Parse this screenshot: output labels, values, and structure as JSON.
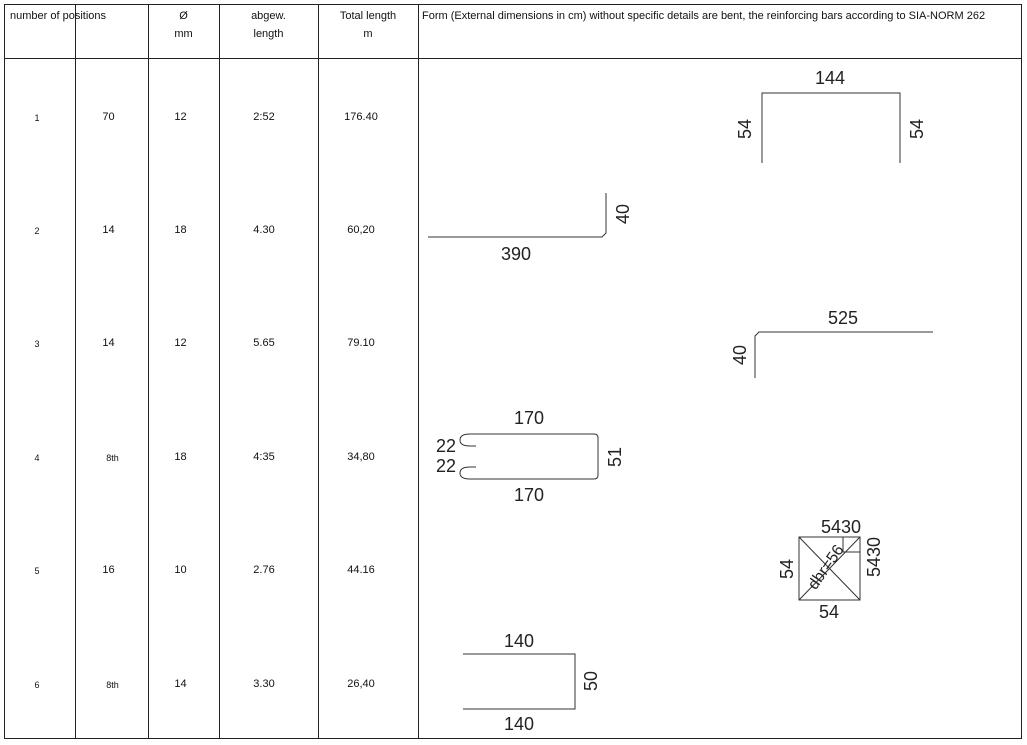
{
  "header": {
    "col_number": "number of positions",
    "col_diam": "Ø",
    "col_diam_unit": "mm",
    "col_len": "abgew.",
    "col_len2": "length",
    "col_total": "Total length",
    "col_total_unit": "m",
    "form_note": "Form (External dimensions in cm) without specific details are bent, the reinforcing bars according to SIA-NORM 262"
  },
  "rows": [
    {
      "pos": "1",
      "count": "70",
      "diam": "12",
      "len": "2:52",
      "total": "176.40"
    },
    {
      "pos": "2",
      "count": "14",
      "diam": "18",
      "len": "4.30",
      "total": "60,20"
    },
    {
      "pos": "3",
      "count": "14",
      "diam": "12",
      "len": "5.65",
      "total": "79.10"
    },
    {
      "pos": "4",
      "count": "8th",
      "diam": "18",
      "len": "4:35",
      "total": "34,80"
    },
    {
      "pos": "5",
      "count": "16",
      "diam": "10",
      "len": "2.76",
      "total": "44.16"
    },
    {
      "pos": "6",
      "count": "8th",
      "diam": "14",
      "len": "3.30",
      "total": "26,40"
    }
  ],
  "shapes": {
    "s1": {
      "top": "144",
      "left": "54",
      "right": "54"
    },
    "s2": {
      "bottom": "390",
      "right": "40"
    },
    "s3": {
      "top": "525",
      "left": "40"
    },
    "s4": {
      "top": "170",
      "bottom": "170",
      "right": "51",
      "hook1": "22",
      "hook2": "22"
    },
    "s5": {
      "top": "5430",
      "right": "5430",
      "left": "54",
      "bottom": "54",
      "inner": "dbr=56"
    },
    "s6": {
      "top": "140",
      "bottom": "140",
      "right": "50"
    }
  }
}
